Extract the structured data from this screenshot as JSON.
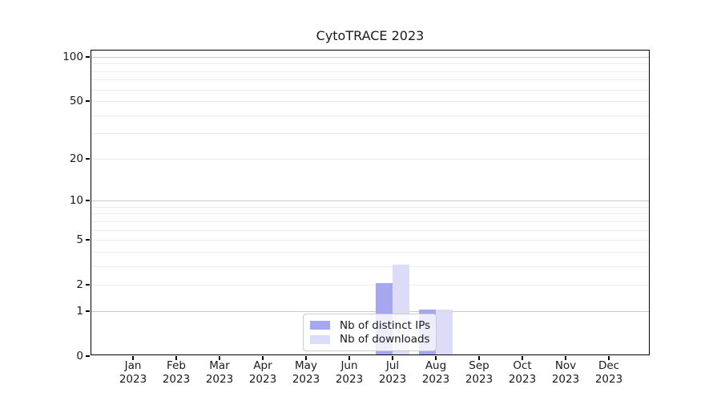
{
  "title": "CytoTRACE 2023",
  "colors": {
    "series_ips": "#a7a7f0",
    "series_downloads": "#dcdcf9",
    "grid_major": "#c9c9c9",
    "grid_minor": "#ededed",
    "spine": "#000000",
    "text": "#1a1a1a",
    "legend_border": "#cccccc"
  },
  "chart_data": {
    "type": "bar",
    "title": "CytoTRACE 2023",
    "categories": [
      "Jan",
      "Feb",
      "Mar",
      "Apr",
      "May",
      "Jun",
      "Jul",
      "Aug",
      "Sep",
      "Oct",
      "Nov",
      "Dec"
    ],
    "category_year": "2023",
    "series": [
      {
        "name": "Nb of distinct IPs",
        "color": "#a7a7f0",
        "values": [
          0,
          0,
          0,
          0,
          0,
          0,
          2,
          1,
          0,
          0,
          0,
          0
        ]
      },
      {
        "name": "Nb of downloads",
        "color": "#dcdcf9",
        "values": [
          0,
          0,
          0,
          0,
          0,
          0,
          3,
          1,
          0,
          0,
          0,
          0
        ]
      }
    ],
    "xlabel": "",
    "ylabel": "",
    "yscale": "log1p",
    "ylim": [
      0,
      110.5
    ],
    "y_labeled_ticks": [
      0,
      1,
      2,
      5,
      10,
      20,
      50,
      100
    ],
    "y_major_gridlines": [
      1,
      10,
      100
    ],
    "y_minor_gridlines": [
      2,
      3,
      4,
      5,
      6,
      7,
      8,
      9,
      20,
      30,
      40,
      50,
      60,
      70,
      80,
      90
    ],
    "grid": "on",
    "legend_position": "lower center"
  }
}
